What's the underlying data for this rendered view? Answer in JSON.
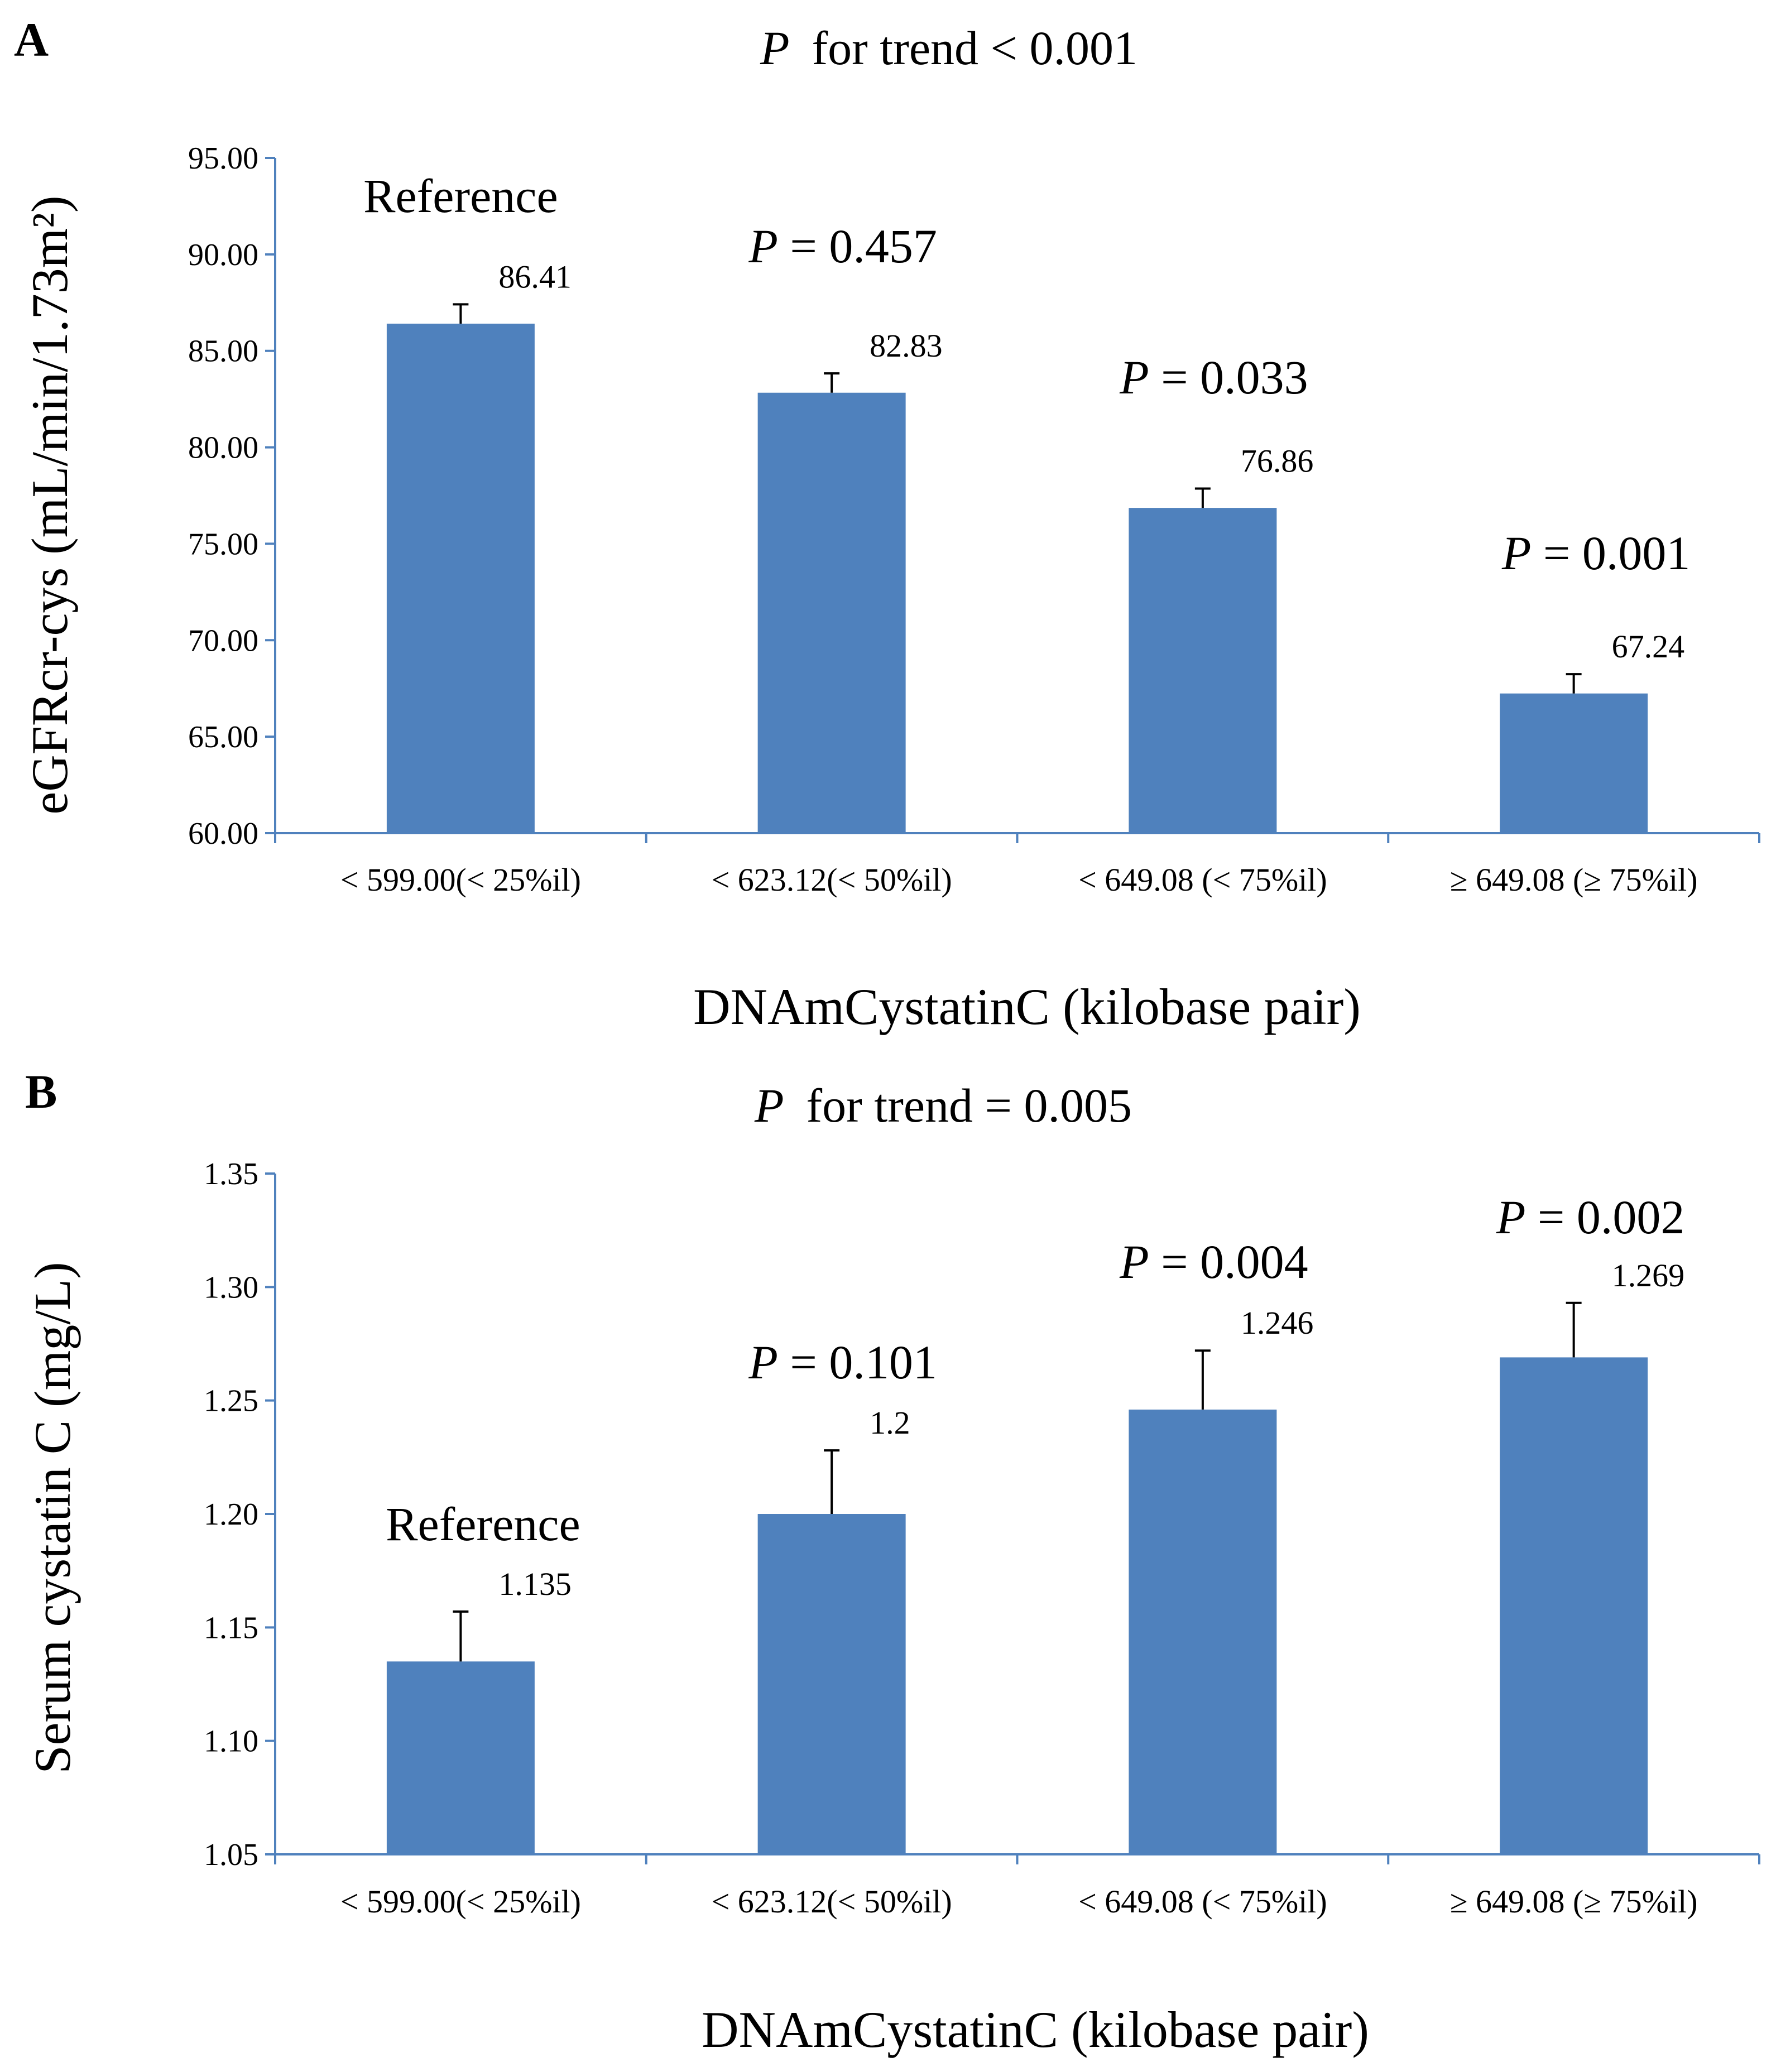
{
  "figure": {
    "colors": {
      "bar": "#4f81bd",
      "axis": "#4f81bd",
      "error": "#000000"
    }
  },
  "chart_data": [
    {
      "panel": "A",
      "type": "bar",
      "title": "for trend < 0.001",
      "title_p": "P",
      "xlabel": "DNAmCystatinC (kilobase pair)",
      "ylabel": "eGFRcr-cys (mL/min/1.73m²)",
      "ylim": [
        60,
        95
      ],
      "ytick_step": 5,
      "ytick_decimals": 2,
      "categories": [
        "< 599.00(< 25%il)",
        "< 623.12(< 50%il)",
        "< 649.08 (< 75%il)",
        "≥ 649.08 (≥ 75%il)"
      ],
      "values": [
        86.41,
        82.83,
        76.86,
        67.24
      ],
      "value_labels": [
        "86.41",
        "82.83",
        "76.86",
        "67.24"
      ],
      "errors": [
        1.0,
        1.0,
        1.0,
        1.0
      ],
      "annotations": [
        {
          "p": "",
          "text": "Reference"
        },
        {
          "p": "P",
          "text": " = 0.457"
        },
        {
          "p": "P",
          "text": " = 0.033"
        },
        {
          "p": "P",
          "text": " = 0.001"
        }
      ]
    },
    {
      "panel": "B",
      "type": "bar",
      "title": "for trend = 0.005",
      "title_p": "P",
      "xlabel": "DNAmCystatinC (kilobase pair)",
      "ylabel": "Serum cystatin C (mg/L)",
      "ylim": [
        1.05,
        1.35
      ],
      "ytick_step": 0.05,
      "ytick_decimals": 2,
      "categories": [
        "< 599.00(< 25%il)",
        "< 623.12(< 50%il)",
        "< 649.08 (< 75%il)",
        "≥ 649.08 (≥ 75%il)"
      ],
      "values": [
        1.135,
        1.2,
        1.246,
        1.269
      ],
      "value_labels": [
        "1.135",
        "1.2",
        "1.246",
        "1.269"
      ],
      "errors": [
        0.022,
        0.028,
        0.026,
        0.024
      ],
      "annotations": [
        {
          "p": "",
          "text": "Reference"
        },
        {
          "p": "P",
          "text": " = 0.101"
        },
        {
          "p": "P",
          "text": " = 0.004"
        },
        {
          "p": "P",
          "text": " = 0.002"
        }
      ]
    }
  ]
}
